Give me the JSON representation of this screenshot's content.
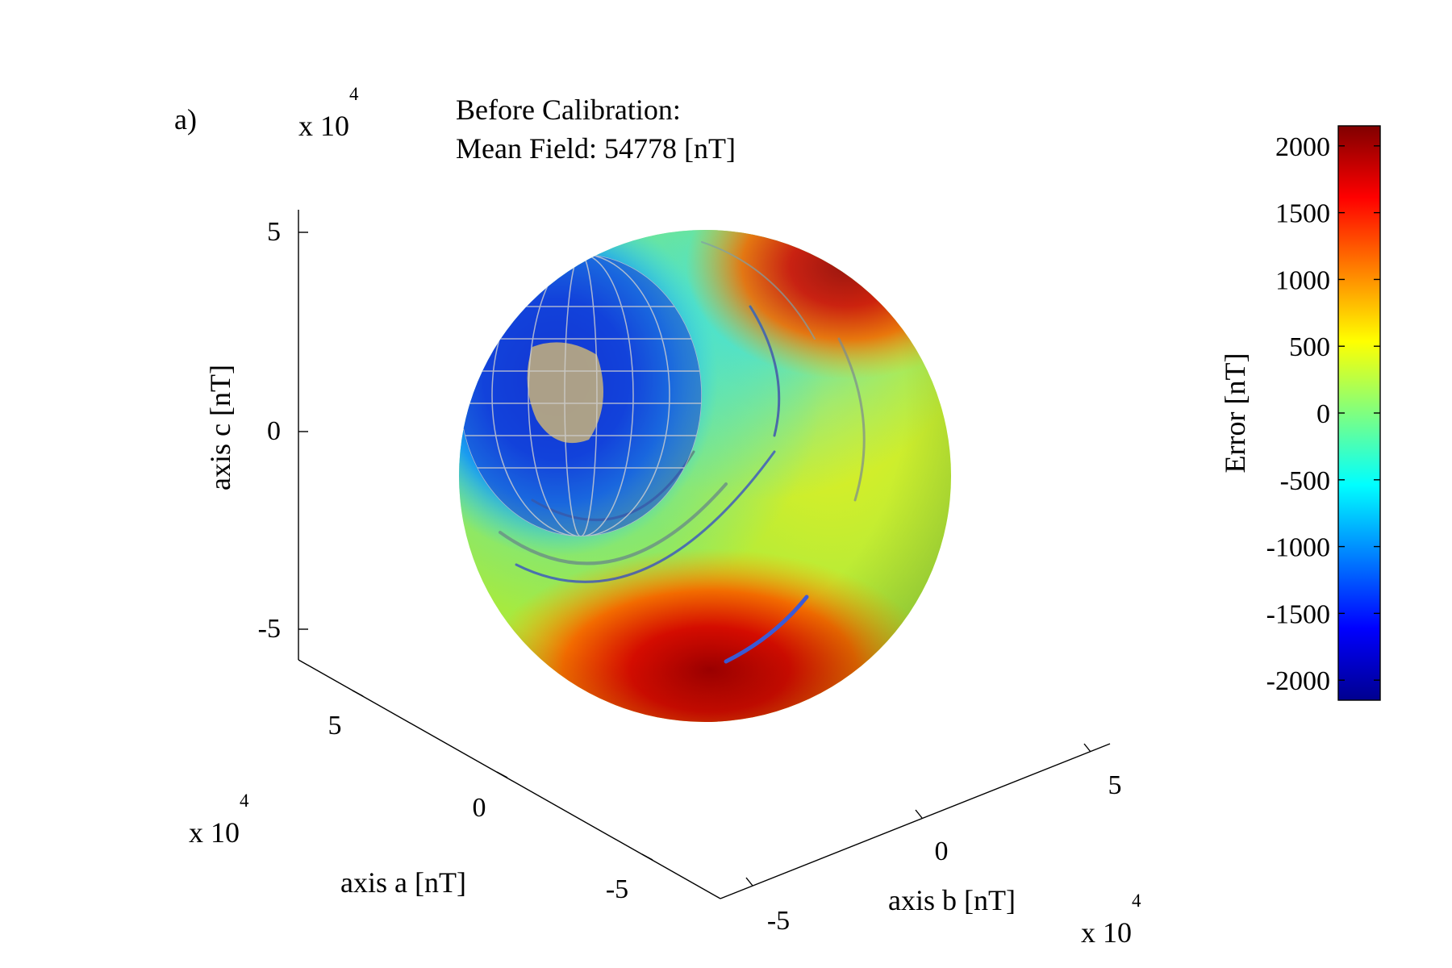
{
  "panel_label": "a)",
  "chart_data": {
    "type": "scatter3d",
    "title": [
      "Before Calibration:",
      "Mean Field: 54778 [nT]"
    ],
    "xlabel": "axis a [nT]",
    "ylabel": "axis b [nT]",
    "zlabel": "axis c [nT]",
    "axis_multiplier": "x 10",
    "axis_multiplier_exponent": "4",
    "x_ticks": [
      "5",
      "0",
      "-5"
    ],
    "y_ticks": [
      "-5",
      "0",
      "5"
    ],
    "z_ticks": [
      "5",
      "0",
      "-5"
    ],
    "xlim": [
      -6,
      6
    ],
    "ylim": [
      -6,
      6
    ],
    "zlim": [
      -5.5,
      5.5
    ],
    "colorbar": {
      "label": "Error [nT]",
      "ticks": [
        "2000",
        "1500",
        "1000",
        "500",
        "0",
        "-500",
        "-1000",
        "-1500",
        "-2000"
      ],
      "range": [
        -2150,
        2150
      ],
      "colormap": "jet"
    },
    "description": "Sphere of measured magnetic field samples colored by error; negative error (blue) concentrated upper-left, positive error (red) at lower-front, with an inset globe visible on the sphere."
  }
}
